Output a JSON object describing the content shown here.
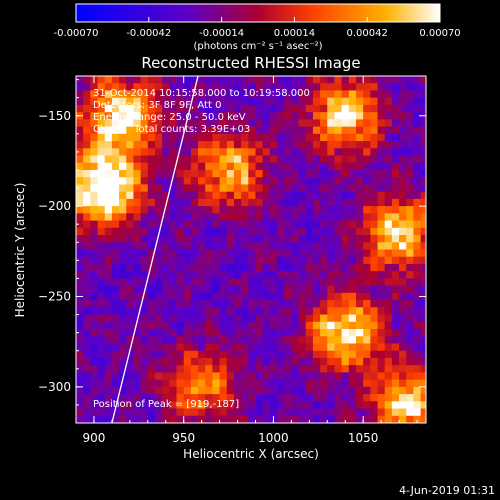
{
  "colorbar": {
    "tick_labels": [
      "-0.00070",
      "-0.00042",
      "-0.00014",
      "0.00014",
      "0.00042",
      "0.00070"
    ],
    "vmin": -0.0007,
    "vmax": 0.0007,
    "units": "(photons cm⁻² s⁻¹ asec⁻²)",
    "colors": [
      "#0000ff",
      "#5a00c8",
      "#aa0032",
      "#ff4000",
      "#ffb000",
      "#ffffff"
    ]
  },
  "chart_data": {
    "type": "heatmap",
    "title": "Reconstructed RHESSI Image",
    "xlabel": "Heliocentric X (arcsec)",
    "ylabel": "Heliocentric Y (arcsec)",
    "xlim": [
      890,
      1085
    ],
    "ylim": [
      -320,
      -128
    ],
    "x_ticks": [
      "900",
      "950",
      "1000",
      "1050"
    ],
    "y_ticks": [
      "-150",
      "-200",
      "-250",
      "-300"
    ],
    "x_tick_values": [
      900,
      950,
      1000,
      1050
    ],
    "y_tick_values": [
      -150,
      -200,
      -250,
      -300
    ],
    "annotations": {
      "time_range": "31-Oct-2014 10:15:58.000 to 10:19:58.000",
      "detectors": "Detectors: 3F 8F 9F, Att 0",
      "energy": "Energy Range: 25.0 - 50.0 keV",
      "clean": "Clean    Total counts: 3.39E+03",
      "peak": "Position of Peak = [919,-187]"
    },
    "peak_position": [
      919,
      -187
    ],
    "limb_line": [
      [
        910,
        -320
      ],
      [
        958,
        -128
      ]
    ],
    "hot_regions": [
      {
        "x": 905,
        "y": -190,
        "level": 0.9
      },
      {
        "x": 915,
        "y": -150,
        "level": 0.7
      },
      {
        "x": 975,
        "y": -180,
        "level": 0.55
      },
      {
        "x": 1040,
        "y": -150,
        "level": 0.6
      },
      {
        "x": 1070,
        "y": -215,
        "level": 0.6
      },
      {
        "x": 1040,
        "y": -270,
        "level": 0.65
      },
      {
        "x": 1075,
        "y": -310,
        "level": 0.6
      },
      {
        "x": 960,
        "y": -300,
        "level": 0.45
      }
    ]
  },
  "footer": {
    "date": "4-Jun-2019 01:31"
  }
}
